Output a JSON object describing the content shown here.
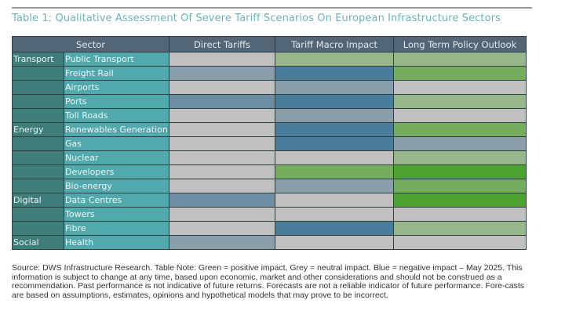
{
  "title": "Table 1: Qualitative Assessment Of Severe Tariff Scenarios On European Infrastructure Sectors",
  "colors": {
    "grey": "#c0c0c0",
    "light_blue_grey": "#8a9dab",
    "medium_blue": "#6c8ea3",
    "dark_blue": "#497d9b",
    "light_green": "#97b68a",
    "medium_green": "#74ad5e",
    "bright_green": "#4ca330",
    "header": "#536676",
    "group_cell": "#3f7d7b",
    "sector_cell": "#52a9ad",
    "title_text": "#6fb3b8"
  },
  "headers": [
    "Sector",
    "Direct Tariffs",
    "Tariff Macro Impact",
    "Long Term Policy Outlook"
  ],
  "rows": [
    {
      "group": "Transport",
      "sector": "Public Transport",
      "direct": "grey",
      "macro": "light_green",
      "policy": "light_green"
    },
    {
      "group": "",
      "sector": "Freight Rail",
      "direct": "light_blue_grey",
      "macro": "dark_blue",
      "policy": "medium_green"
    },
    {
      "group": "",
      "sector": "Airports",
      "direct": "grey",
      "macro": "light_blue_grey",
      "policy": "grey"
    },
    {
      "group": "",
      "sector": "Ports",
      "direct": "medium_blue",
      "macro": "dark_blue",
      "policy": "light_green"
    },
    {
      "group": "",
      "sector": "Toll Roads",
      "direct": "grey",
      "macro": "light_blue_grey",
      "policy": "grey"
    },
    {
      "group": "Energy",
      "sector": "Renewables Generation",
      "direct": "grey",
      "macro": "dark_blue",
      "policy": "medium_green"
    },
    {
      "group": "",
      "sector": "Gas",
      "direct": "grey",
      "macro": "dark_blue",
      "policy": "light_blue_grey"
    },
    {
      "group": "",
      "sector": "Nuclear",
      "direct": "grey",
      "macro": "grey",
      "policy": "light_green"
    },
    {
      "group": "",
      "sector": "Developers",
      "direct": "grey",
      "macro": "medium_green",
      "policy": "bright_green"
    },
    {
      "group": "",
      "sector": "Bio-energy",
      "direct": "grey",
      "macro": "light_blue_grey",
      "policy": "medium_green"
    },
    {
      "group": "Digital",
      "sector": "Data Centres",
      "direct": "medium_blue",
      "macro": "grey",
      "policy": "bright_green"
    },
    {
      "group": "",
      "sector": "Towers",
      "direct": "grey",
      "macro": "grey",
      "policy": "grey"
    },
    {
      "group": "",
      "sector": "Fibre",
      "direct": "grey",
      "macro": "dark_blue",
      "policy": "light_green"
    },
    {
      "group": "Social",
      "sector": "Health",
      "direct": "light_blue_grey",
      "macro": "grey",
      "policy": "grey"
    }
  ],
  "note": "Source: DWS Infrastructure Research. Table Note: Green = positive impact, Grey = neutral impact. Blue = negative impact – May 2025. This information is subject to change at any time, based upon economic, market and other considerations and should not be construed as a recommendation. Past performance is not indicative of future returns. Forecasts are not a reliable indicator of future performance. Fore-casts are based on assumptions, estimates, opinions and hypothetical models that may prove to be incorrect."
}
